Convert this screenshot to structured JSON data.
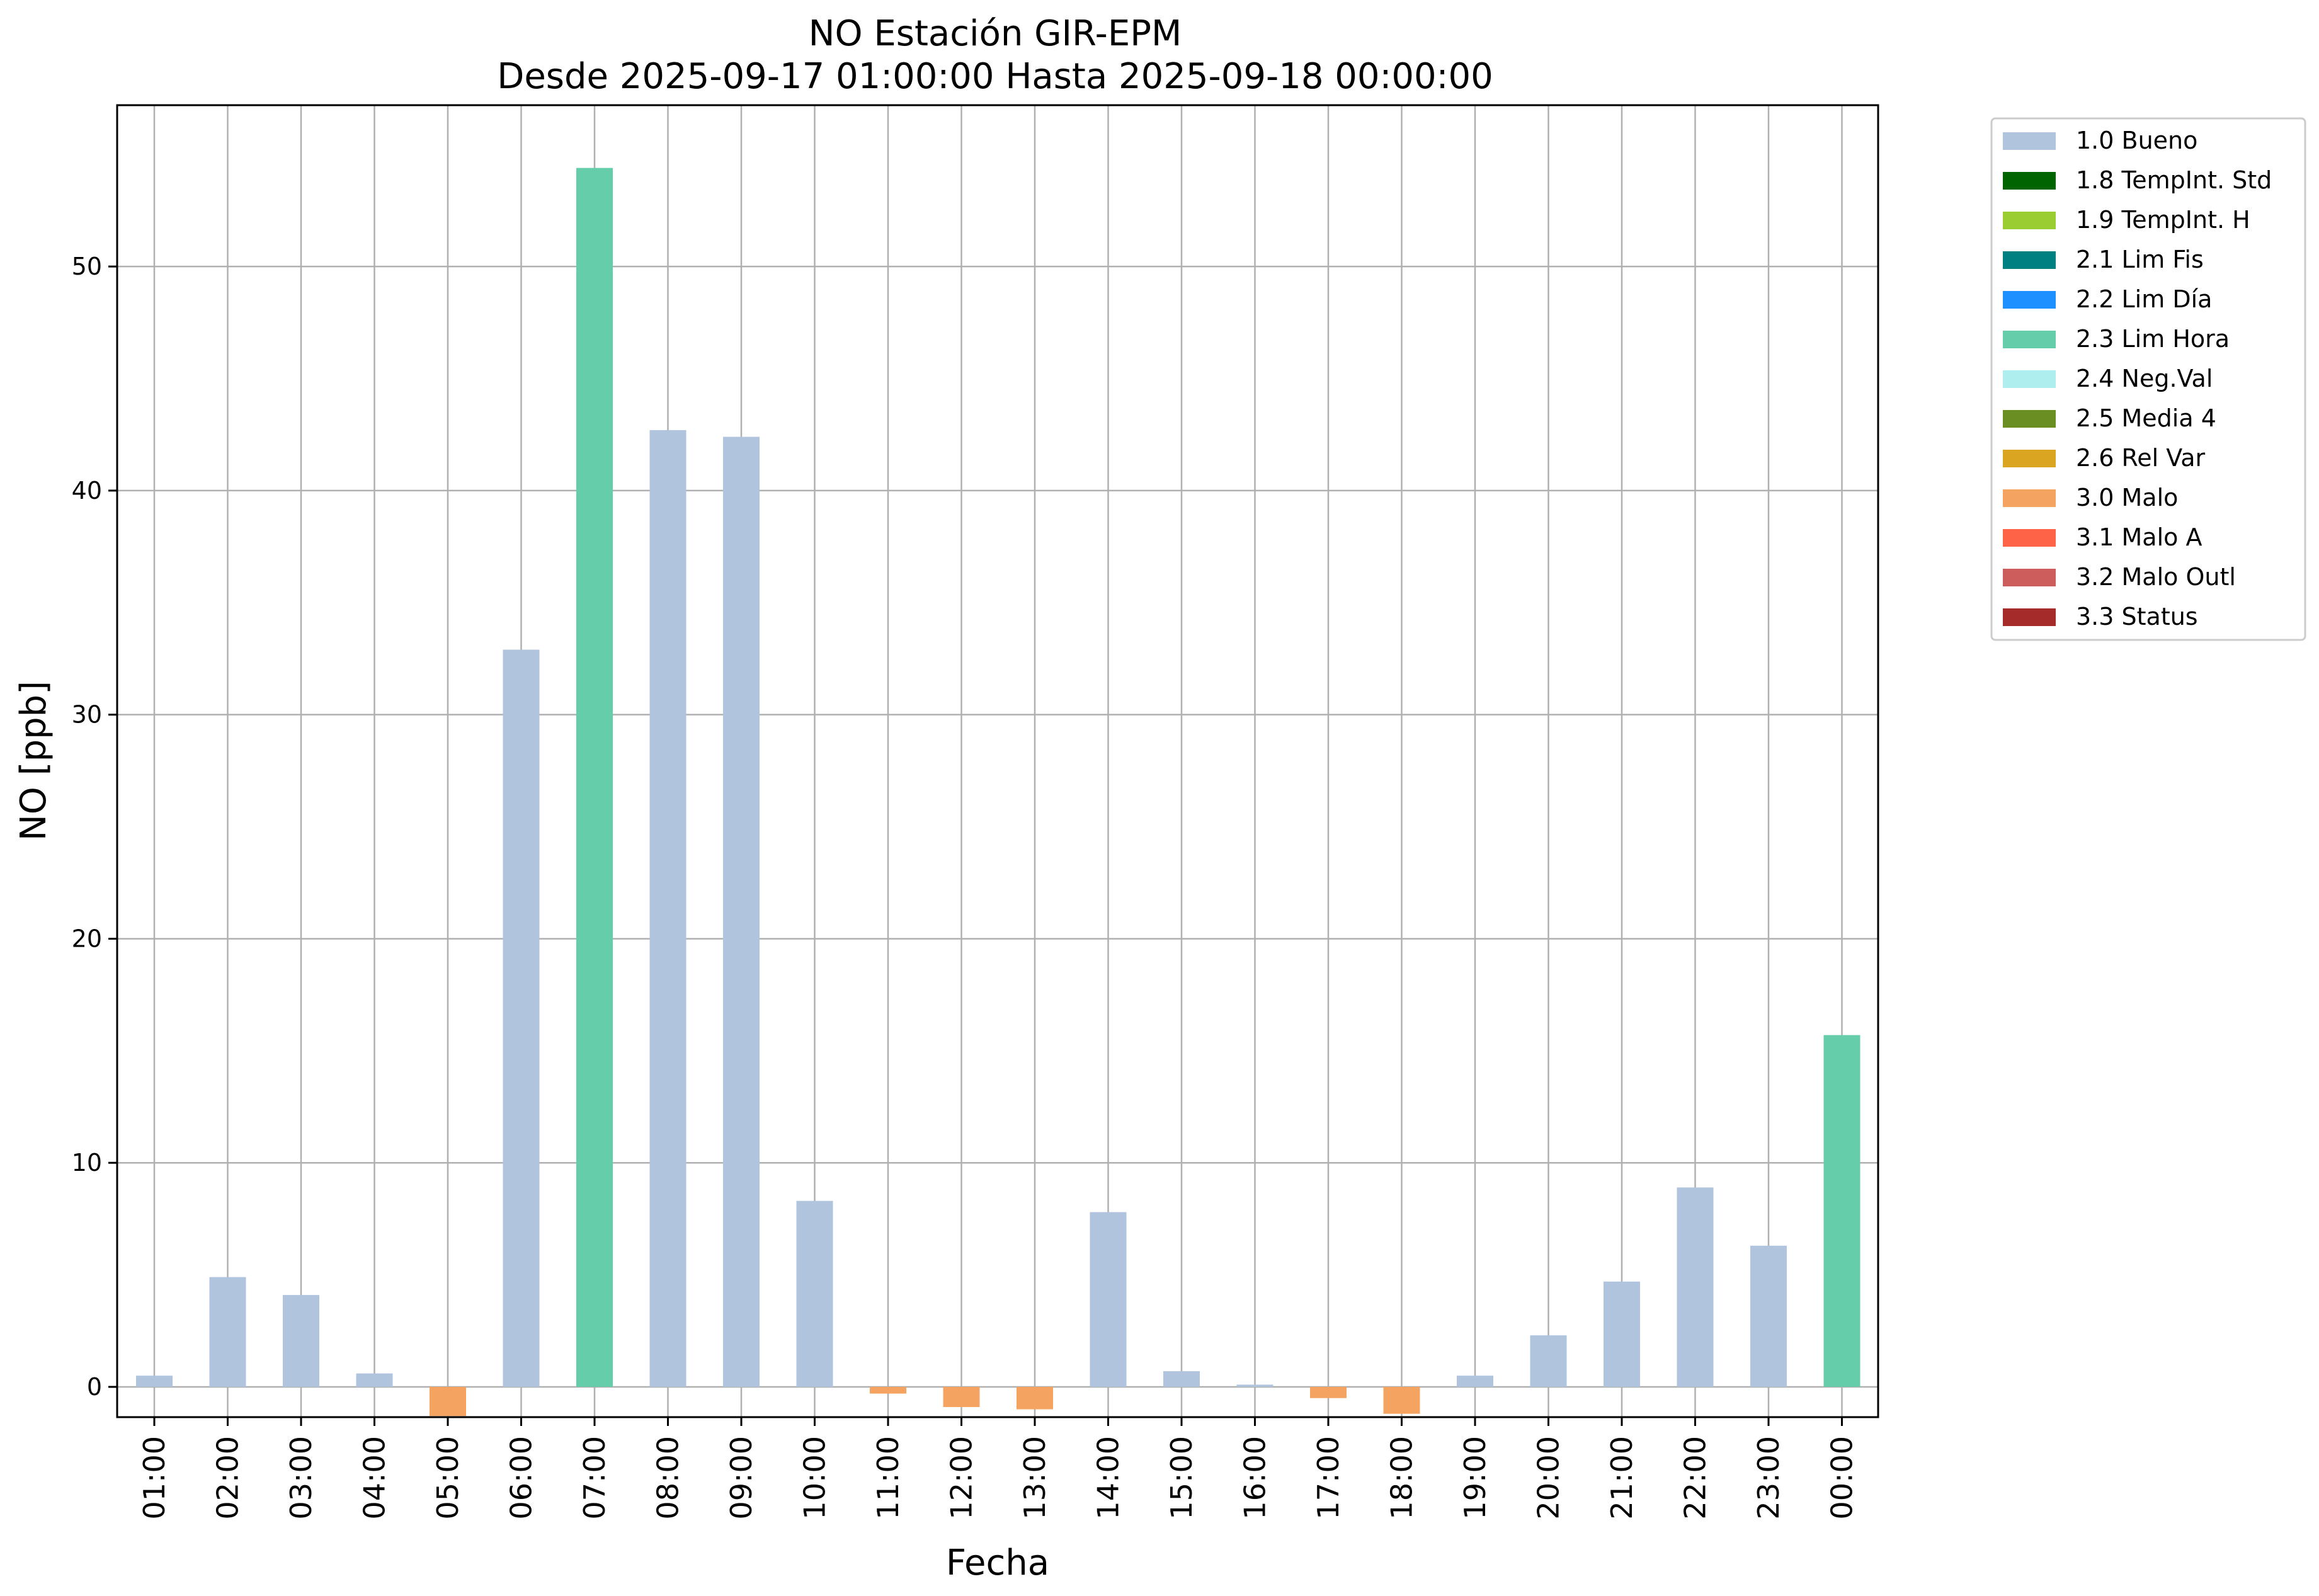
{
  "chart_data": {
    "type": "bar",
    "title": "NO Estación GIR-EPM",
    "subtitle": "Desde 2025-09-17 01:00:00 Hasta 2025-09-18 00:00:00",
    "xlabel": "Fecha",
    "ylabel": "NO [ppb]",
    "ylim": [
      -1.35,
      57.2
    ],
    "yticks": [
      0,
      10,
      20,
      30,
      40,
      50
    ],
    "grid": true,
    "legend_position": "outside-top-right",
    "categories": [
      "01:00",
      "02:00",
      "03:00",
      "04:00",
      "05:00",
      "06:00",
      "07:00",
      "08:00",
      "09:00",
      "10:00",
      "11:00",
      "12:00",
      "13:00",
      "14:00",
      "15:00",
      "16:00",
      "17:00",
      "18:00",
      "19:00",
      "20:00",
      "21:00",
      "22:00",
      "23:00",
      "00:00"
    ],
    "values": [
      0.5,
      4.9,
      4.1,
      0.6,
      -1.3,
      32.9,
      54.4,
      42.7,
      42.4,
      8.3,
      -0.3,
      -0.9,
      -1.0,
      7.8,
      0.7,
      0.1,
      -0.5,
      -1.2,
      0.5,
      2.3,
      4.7,
      8.9,
      6.3,
      15.7
    ],
    "flags": [
      "1.0 Bueno",
      "1.0 Bueno",
      "1.0 Bueno",
      "1.0 Bueno",
      "3.0 Malo",
      "1.0 Bueno",
      "2.3 Lim Hora",
      "1.0 Bueno",
      "1.0 Bueno",
      "1.0 Bueno",
      "3.0 Malo",
      "3.0 Malo",
      "3.0 Malo",
      "1.0 Bueno",
      "1.0 Bueno",
      "1.0 Bueno",
      "3.0 Malo",
      "3.0 Malo",
      "1.0 Bueno",
      "1.0 Bueno",
      "1.0 Bueno",
      "1.0 Bueno",
      "1.0 Bueno",
      "2.3 Lim Hora"
    ],
    "legend": [
      {
        "name": "1.0 Bueno",
        "color": "#b0c4de"
      },
      {
        "name": "1.8 TempInt. Std",
        "color": "#006400"
      },
      {
        "name": "1.9 TempInt. H",
        "color": "#9acd32"
      },
      {
        "name": "2.1 Lim Fis",
        "color": "#008080"
      },
      {
        "name": "2.2 Lim Día",
        "color": "#1e90ff"
      },
      {
        "name": "2.3 Lim Hora",
        "color": "#66cdaa"
      },
      {
        "name": "2.4 Neg.Val",
        "color": "#afeeee"
      },
      {
        "name": "2.5 Media 4",
        "color": "#6b8e23"
      },
      {
        "name": "2.6 Rel Var",
        "color": "#daa520"
      },
      {
        "name": "3.0 Malo",
        "color": "#f4a460"
      },
      {
        "name": "3.1 Malo A",
        "color": "#ff6347"
      },
      {
        "name": "3.2 Malo Outl",
        "color": "#cd5c5c"
      },
      {
        "name": "3.3 Status",
        "color": "#a52a2a"
      }
    ]
  }
}
